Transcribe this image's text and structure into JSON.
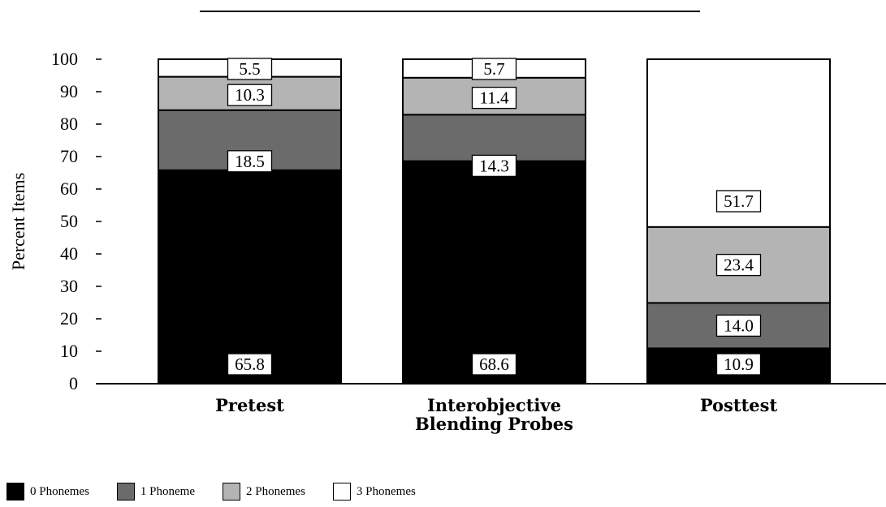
{
  "chart_data": {
    "type": "bar",
    "stacked": true,
    "title": "",
    "xlabel": "",
    "ylabel": "Percent Items",
    "ylim": [
      0,
      100
    ],
    "yticks": [
      0,
      10,
      20,
      30,
      40,
      50,
      60,
      70,
      80,
      90,
      100
    ],
    "categories": [
      [
        "Pretest"
      ],
      [
        "Interobjective",
        "Blending Probes"
      ],
      [
        "Posttest"
      ]
    ],
    "series": [
      {
        "name": "0 Phonemes",
        "color": "#000000",
        "values": [
          65.8,
          68.6,
          10.9
        ],
        "labels": [
          "65.8",
          "68.6",
          "10.9"
        ]
      },
      {
        "name": "1 Phoneme",
        "color": "#6b6b6b",
        "values": [
          18.5,
          14.3,
          14.0
        ],
        "labels": [
          "18.5",
          "14.3",
          "14.0"
        ]
      },
      {
        "name": "2 Phonemes",
        "color": "#b4b4b4",
        "values": [
          10.3,
          11.4,
          23.4
        ],
        "labels": [
          "10.3",
          "11.4",
          "23.4"
        ]
      },
      {
        "name": "3 Phonemes",
        "color": "#ffffff",
        "values": [
          5.5,
          5.7,
          51.7
        ],
        "labels": [
          "5.5",
          "5.7",
          "51.7"
        ]
      }
    ],
    "legend": "bottom-left",
    "grid": false
  }
}
